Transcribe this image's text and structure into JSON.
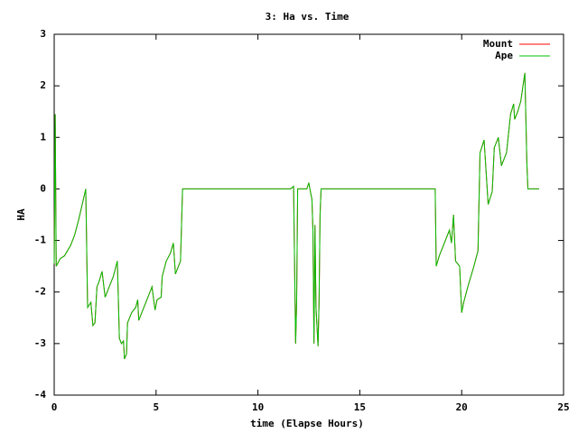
{
  "chart_data": {
    "type": "line",
    "title": "3: Ha vs. Time",
    "x_label": "time (Elapse Hours)",
    "y_label": "HA",
    "x": [
      0,
      0.05,
      0.1,
      0.3,
      0.5,
      0.8,
      1.0,
      1.2,
      1.55,
      1.64,
      1.8,
      1.9,
      2.0,
      2.1,
      2.2,
      2.35,
      2.5,
      2.7,
      2.9,
      3.1,
      3.2,
      3.3,
      3.4,
      3.45,
      3.55,
      3.6,
      3.8,
      4.0,
      4.1,
      4.15,
      4.3,
      4.5,
      4.8,
      4.95,
      5.05,
      5.25,
      5.3,
      5.5,
      5.7,
      5.85,
      5.95,
      6.1,
      6.2,
      6.3,
      11.6,
      11.75,
      11.8,
      11.85,
      11.9,
      11.95,
      12.4,
      12.5,
      12.55,
      12.65,
      12.7,
      12.75,
      12.8,
      12.85,
      12.95,
      13.0,
      13.05,
      13.1,
      18.7,
      18.75,
      18.9,
      19.3,
      19.4,
      19.5,
      19.6,
      19.7,
      19.9,
      20.0,
      20.1,
      20.3,
      20.6,
      20.8,
      20.9,
      21.1,
      21.3,
      21.5,
      21.6,
      21.8,
      21.95,
      22.2,
      22.4,
      22.55,
      22.6,
      22.75,
      22.9,
      23.1,
      23.2,
      23.25,
      23.8
    ],
    "series": [
      {
        "name": "Mount",
        "color": "#ff0000",
        "values": [
          -1.45,
          1.45,
          -1.5,
          -1.35,
          -1.3,
          -1.1,
          -0.9,
          -0.6,
          0,
          -2.3,
          -2.2,
          -2.65,
          -2.6,
          -1.9,
          -1.8,
          -1.6,
          -2.1,
          -1.9,
          -1.7,
          -1.4,
          -2.9,
          -3.0,
          -2.95,
          -3.3,
          -3.2,
          -2.6,
          -2.4,
          -2.3,
          -2.15,
          -2.55,
          -2.4,
          -2.2,
          -1.9,
          -2.35,
          -2.15,
          -2.1,
          -1.7,
          -1.4,
          -1.25,
          -1.05,
          -1.65,
          -1.5,
          -1.4,
          0,
          0,
          0.05,
          -1.5,
          -3.0,
          -2.2,
          0,
          0,
          0.12,
          0,
          -0.2,
          -0.8,
          -3.0,
          -0.7,
          -2.3,
          -3.05,
          -2.2,
          -0.5,
          0,
          0,
          -1.5,
          -1.3,
          -0.9,
          -0.8,
          -1.05,
          -0.5,
          -1.4,
          -1.5,
          -2.4,
          -2.2,
          -1.9,
          -1.5,
          -1.2,
          0.7,
          0.95,
          -0.3,
          -0.05,
          0.8,
          1.0,
          0.45,
          0.7,
          1.45,
          1.65,
          1.35,
          1.5,
          1.7,
          2.25,
          0.5,
          0,
          0
        ]
      },
      {
        "name": "Ape",
        "color": "#00c000",
        "values": [
          -1.45,
          1.45,
          -1.5,
          -1.35,
          -1.3,
          -1.1,
          -0.9,
          -0.6,
          0,
          -2.3,
          -2.2,
          -2.65,
          -2.6,
          -1.9,
          -1.8,
          -1.6,
          -2.1,
          -1.9,
          -1.7,
          -1.4,
          -2.9,
          -3.0,
          -2.95,
          -3.3,
          -3.2,
          -2.6,
          -2.4,
          -2.3,
          -2.15,
          -2.55,
          -2.4,
          -2.2,
          -1.9,
          -2.35,
          -2.15,
          -2.1,
          -1.7,
          -1.4,
          -1.25,
          -1.05,
          -1.65,
          -1.5,
          -1.4,
          0,
          0,
          0.05,
          -1.5,
          -3.0,
          -2.2,
          0,
          0,
          0.12,
          0,
          -0.2,
          -0.8,
          -3.0,
          -0.7,
          -2.3,
          -3.05,
          -2.2,
          -0.5,
          0,
          0,
          -1.5,
          -1.3,
          -0.9,
          -0.8,
          -1.05,
          -0.5,
          -1.4,
          -1.5,
          -2.4,
          -2.2,
          -1.9,
          -1.5,
          -1.2,
          0.7,
          0.95,
          -0.3,
          -0.05,
          0.8,
          1.0,
          0.45,
          0.7,
          1.45,
          1.65,
          1.35,
          1.5,
          1.7,
          2.25,
          0.5,
          0,
          0
        ]
      }
    ],
    "xlim": [
      0,
      25
    ],
    "xticks": [
      0,
      5,
      10,
      15,
      20,
      25
    ],
    "ylim": [
      -4,
      3
    ],
    "yticks": [
      -4,
      -3,
      -2,
      -1,
      0,
      1,
      2,
      3
    ],
    "grid": false,
    "legend": "top-right"
  }
}
